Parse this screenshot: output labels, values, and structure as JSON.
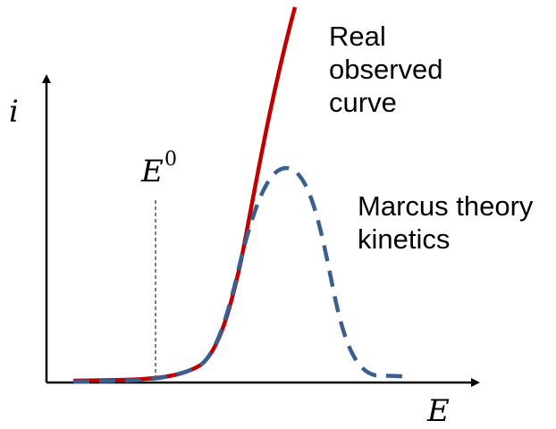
{
  "axes": {
    "y_label": "i",
    "x_label": "E"
  },
  "marker": {
    "base": "E",
    "superscript": "0"
  },
  "annotations": {
    "observed": [
      "Real",
      "observed",
      "curve"
    ],
    "marcus": [
      "Marcus theory",
      "kinetics"
    ]
  },
  "colors": {
    "observed_curve": "#c00000",
    "marcus_curve": "#3a5f8f",
    "axes": "#000000"
  },
  "series_styles": {
    "observed_curve": "solid",
    "marcus_curve": "dashed"
  }
}
